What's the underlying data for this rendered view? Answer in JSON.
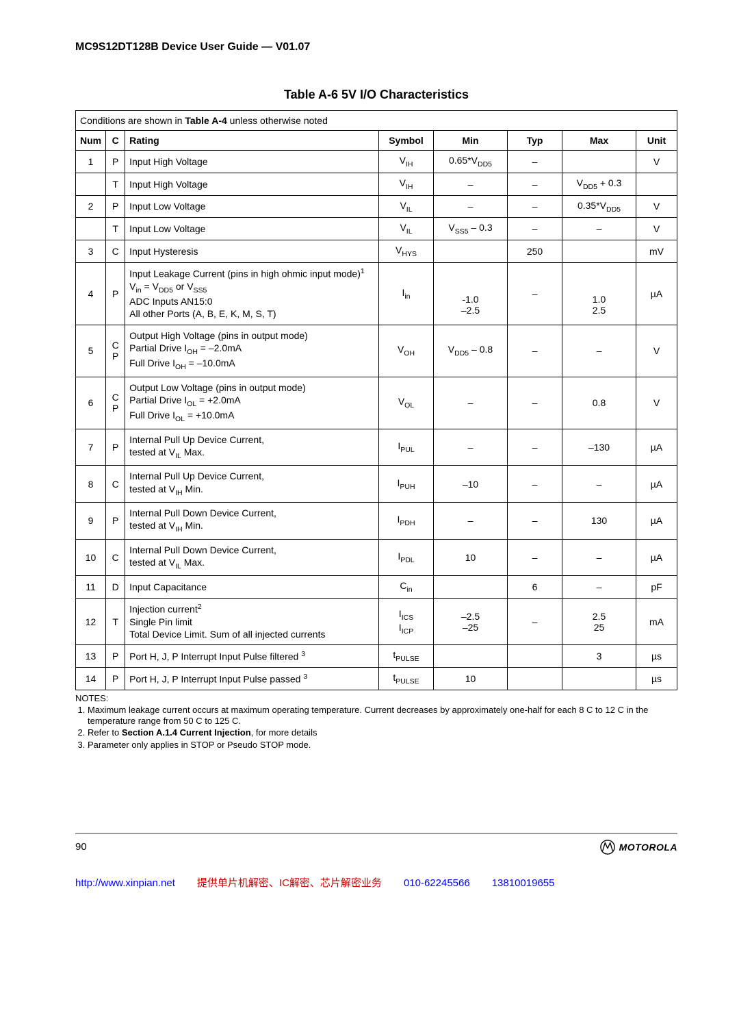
{
  "header": {
    "title": "MC9S12DT128B Device User Guide — V01.07"
  },
  "table": {
    "title": "Table A-6  5V I/O Characteristics",
    "conditions_prefix": "Conditions are shown in ",
    "conditions_bold": "Table A-4",
    "conditions_suffix": " unless otherwise noted",
    "columns": {
      "num": "Num",
      "c": "C",
      "rating": "Rating",
      "symbol": "Symbol",
      "min": "Min",
      "typ": "Typ",
      "max": "Max",
      "unit": "Unit"
    },
    "rows": [
      {
        "num": "1",
        "c": "P",
        "rating_html": "Input High Voltage",
        "symbol_html": "V<span class='sub'>IH</span>",
        "min_html": "0.65*V<span class='sub'>DD5</span>",
        "typ": "–",
        "max": "",
        "unit": "V"
      },
      {
        "num": "",
        "c": "T",
        "rating_html": "Input High Voltage",
        "symbol_html": "V<span class='sub'>IH</span>",
        "min": "–",
        "typ": "–",
        "max_html": "V<span class='sub'>DD5</span> + 0.3",
        "unit": ""
      },
      {
        "num": "2",
        "c": "P",
        "rating_html": "Input Low Voltage",
        "symbol_html": "V<span class='sub'>IL</span>",
        "min": "–",
        "typ": "–",
        "max_html": "0.35*V<span class='sub'>DD5</span>",
        "unit": "V"
      },
      {
        "num": "",
        "c": "T",
        "rating_html": "Input Low Voltage",
        "symbol_html": "V<span class='sub'>IL</span>",
        "min_html": "V<span class='sub'>SS5</span> – 0.3",
        "typ": "–",
        "max": "–",
        "unit": "V"
      },
      {
        "num": "3",
        "c": "C",
        "rating_html": "Input Hysteresis",
        "symbol_html": "V<span class='sub'>HYS</span>",
        "min": "",
        "typ": "250",
        "max": "",
        "unit": "mV"
      },
      {
        "num": "4",
        "c": "P",
        "rating_html": "Input Leakage Current (pins in high ohmic input mode)<span class='sup'>1</span><br>V<span class='sub'>in</span> = V<span class='sub'>DD5</span> or V<span class='sub'>SS5</span><br>ADC Inputs AN15:0<br>All other Ports (A, B, E, K, M, S, T)",
        "symbol_html": "I<span class='sub'>in</span>",
        "min_html": "<br><br>-1.0<br>–2.5",
        "typ": "–",
        "max_html": "<br><br>1.0<br>2.5",
        "unit": "µA"
      },
      {
        "num": "5",
        "c_html": "C<br>P",
        "rating_html": "Output High Voltage (pins in output mode)<br>Partial Drive I<span class='sub'>OH</span> = –2.0mA<br>Full Drive I<span class='sub'>OH</span> = –10.0mA",
        "symbol_html": "V<span class='sub'>OH</span>",
        "min_html": "V<span class='sub'>DD5</span> – 0.8",
        "typ": "–",
        "max": "–",
        "unit": "V"
      },
      {
        "num": "6",
        "c_html": "C<br>P",
        "rating_html": "Output Low Voltage (pins in output mode)<br>Partial Drive I<span class='sub'>OL</span> = +2.0mA<br>Full Drive I<span class='sub'>OL</span> = +10.0mA",
        "symbol_html": "V<span class='sub'>OL</span>",
        "min": "–",
        "typ": "–",
        "max": "0.8",
        "unit": "V"
      },
      {
        "num": "7",
        "c": "P",
        "rating_html": "Internal Pull Up Device Current,<br>tested at V<span class='sub'>IL</span> Max.",
        "symbol_html": "I<span class='sub'>PUL</span>",
        "min": "–",
        "typ": "–",
        "max": "–130",
        "unit": "µA"
      },
      {
        "num": "8",
        "c": "C",
        "rating_html": "Internal Pull Up Device Current,<br>tested at V<span class='sub'>IH</span> Min.",
        "symbol_html": "I<span class='sub'>PUH</span>",
        "min": "–10",
        "typ": "–",
        "max": "–",
        "unit": "µA"
      },
      {
        "num": "9",
        "c": "P",
        "rating_html": "Internal Pull Down Device Current,<br>tested at V<span class='sub'>IH</span> Min.",
        "symbol_html": "I<span class='sub'>PDH</span>",
        "min": "–",
        "typ": "–",
        "max": "130",
        "unit": "µA"
      },
      {
        "num": "10",
        "c": "C",
        "rating_html": "Internal Pull Down Device Current,<br>tested at V<span class='sub'>IL</span> Max.",
        "symbol_html": "I<span class='sub'>PDL</span>",
        "min": "10",
        "typ": "–",
        "max": "–",
        "unit": "µA"
      },
      {
        "num": "11",
        "c": "D",
        "rating_html": "Input Capacitance",
        "symbol_html": "C<span class='sub'>in</span>",
        "min": "",
        "typ": "6",
        "max": "–",
        "unit": "pF"
      },
      {
        "num": "12",
        "c": "T",
        "rating_html": "Injection current<span class='sup'>2</span><br>Single Pin limit<br>Total Device Limit. Sum of all injected currents",
        "symbol_html": "I<span class='sub'>ICS</span><br>I<span class='sub'>ICP</span>",
        "min_html": "–2.5<br>–25",
        "typ": "–",
        "max_html": "2.5<br>25",
        "unit": "mA"
      },
      {
        "num": "13",
        "c": "P",
        "rating_html": "Port H, J, P Interrupt Input Pulse filtered <span class='sup'>3</span>",
        "symbol_html": "t<span class='sub'>PULSE</span>",
        "min": "",
        "typ": "",
        "max": "3",
        "unit": "µs"
      },
      {
        "num": "14",
        "c": "P",
        "rating_html": "Port H, J, P Interrupt Input Pulse passed <span class='sup'>3</span>",
        "symbol_html": "t<span class='sub'>PULSE</span>",
        "min": "10",
        "typ": "",
        "max": "",
        "unit": "µs"
      }
    ]
  },
  "notes": {
    "label": "NOTES:",
    "items": [
      "Maximum leakage current occurs at maximum operating temperature. Current decreases by approximately one-half for each 8 C to 12 C in the temperature range from 50 C to 125 C.",
      "Refer to <b>Section A.1.4 Current Injection</b>, for more details",
      "Parameter only applies in STOP or Pseudo STOP mode."
    ]
  },
  "footer": {
    "page_number": "90",
    "brand": "MOTOROLA",
    "link_url": "http://www.xinpian.net",
    "link_desc": "提供单片机解密、IC解密、芯片解密业务",
    "phone1": "010-62245566",
    "phone2": "13810019655"
  }
}
